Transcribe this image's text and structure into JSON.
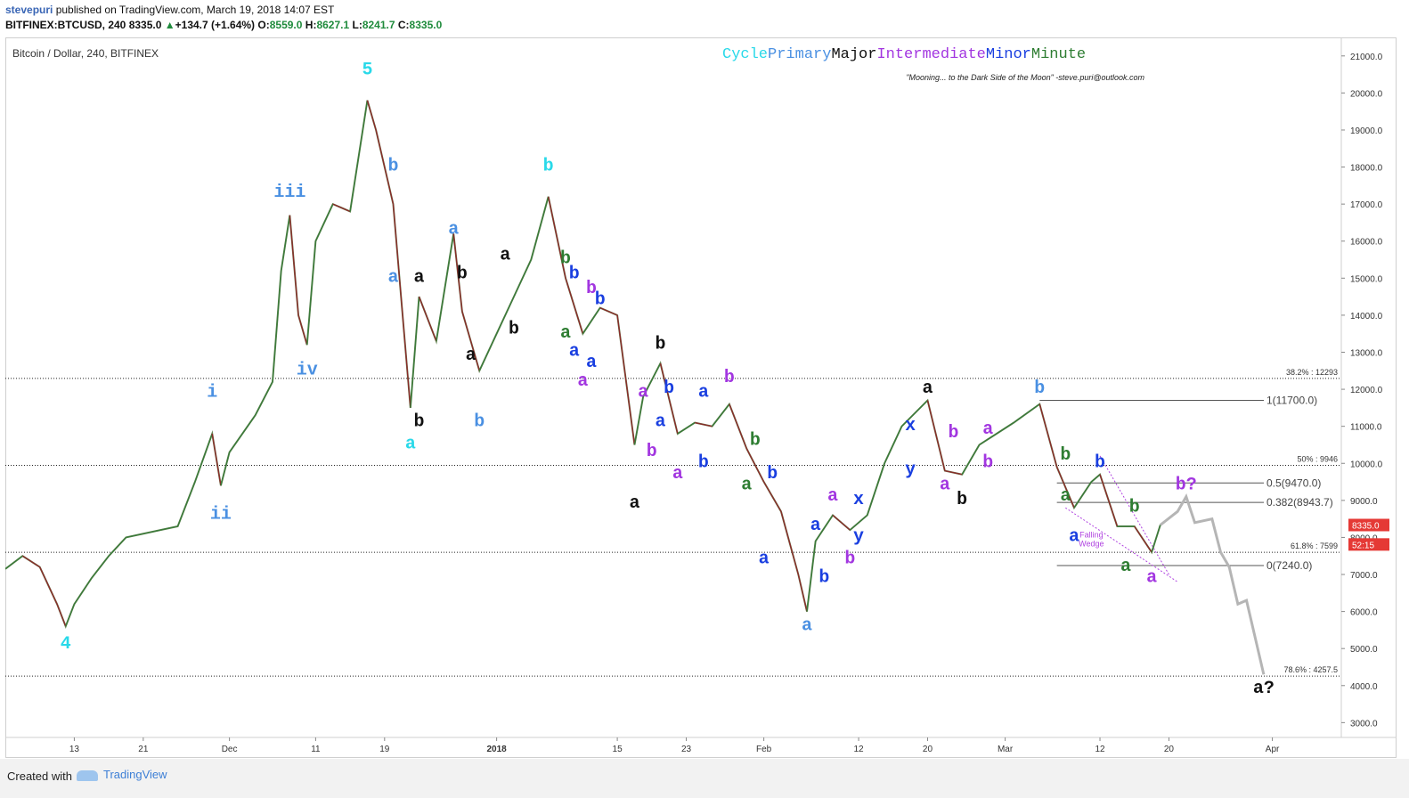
{
  "header": {
    "author": "stevepuri",
    "published_text": "published on TradingView.com, March 19, 2018 14:07 EST",
    "symbol": "BITFINEX:BTCUSD, 240",
    "last": "8335.0",
    "change_arrow": "▲",
    "change": "+134.7 (+1.64%)",
    "open_label": "O:",
    "open": "8559.0",
    "high_label": "H:",
    "high": "8627.1",
    "low_label": "L:",
    "low": "8241.7",
    "close_label": "C:",
    "close": "8335.0"
  },
  "footer": {
    "created_with": "Created with",
    "brand": "TradingView"
  },
  "chart_data": {
    "type": "line",
    "series_kind": "candlestick (4-hour), traced as close path",
    "title": "Bitcoin / Dollar, 240, BITFINEX",
    "legend_words": [
      {
        "text": "Cycle",
        "color": "#29d9e9"
      },
      {
        "text": "Primary",
        "color": "#4a90e2"
      },
      {
        "text": "Major",
        "color": "#111111"
      },
      {
        "text": "Intermediate",
        "color": "#a236e0"
      },
      {
        "text": "Minor",
        "color": "#1a3fe0"
      },
      {
        "text": "Minute",
        "color": "#2e7d32"
      }
    ],
    "subtitle": "\"Mooning... to the Dark Side of the Moon\" -steve.puri@outlook.com",
    "y_axis": {
      "ylim": [
        2600,
        21500
      ],
      "ticks": [
        3000,
        4000,
        5000,
        6000,
        7000,
        8000,
        9000,
        10000,
        11000,
        12000,
        13000,
        14000,
        15000,
        16000,
        17000,
        18000,
        19000,
        20000,
        21000
      ],
      "tick_labels": [
        "3000.0",
        "4000.0",
        "5000.0",
        "6000.0",
        "7000.0",
        "8000.0",
        "9000.0",
        "10000.0",
        "11000.0",
        "12000.0",
        "13000.0",
        "14000.0",
        "15000.0",
        "16000.0",
        "17000.0",
        "18000.0",
        "19000.0",
        "20000.0",
        "21000.0"
      ]
    },
    "x_axis": {
      "xlim": [
        "2017-11-05",
        "2018-04-09"
      ],
      "ticks": [
        {
          "date": "2017-11-13",
          "label": "13"
        },
        {
          "date": "2017-11-21",
          "label": "21"
        },
        {
          "date": "2017-12-01",
          "label": "Dec"
        },
        {
          "date": "2017-12-11",
          "label": "11"
        },
        {
          "date": "2017-12-19",
          "label": "19"
        },
        {
          "date": "2018-01-01",
          "label": "2018"
        },
        {
          "date": "2018-01-15",
          "label": "15"
        },
        {
          "date": "2018-01-23",
          "label": "23"
        },
        {
          "date": "2018-02-01",
          "label": "Feb"
        },
        {
          "date": "2018-02-12",
          "label": "12"
        },
        {
          "date": "2018-02-20",
          "label": "20"
        },
        {
          "date": "2018-03-01",
          "label": "Mar"
        },
        {
          "date": "2018-03-12",
          "label": "12"
        },
        {
          "date": "2018-03-20",
          "label": "20"
        },
        {
          "date": "2018-04-01",
          "label": "Apr"
        }
      ]
    },
    "price_path": [
      [
        "2017-11-05",
        7150
      ],
      [
        "2017-11-07",
        7500
      ],
      [
        "2017-11-09",
        7200
      ],
      [
        "2017-11-11",
        6200
      ],
      [
        "2017-11-12",
        5600
      ],
      [
        "2017-11-13",
        6200
      ],
      [
        "2017-11-15",
        6900
      ],
      [
        "2017-11-17",
        7500
      ],
      [
        "2017-11-19",
        8000
      ],
      [
        "2017-11-21",
        8100
      ],
      [
        "2017-11-23",
        8200
      ],
      [
        "2017-11-25",
        8300
      ],
      [
        "2017-11-27",
        9500
      ],
      [
        "2017-11-29",
        10800
      ],
      [
        "2017-11-30",
        9400
      ],
      [
        "2017-12-01",
        10300
      ],
      [
        "2017-12-04",
        11300
      ],
      [
        "2017-12-06",
        12200
      ],
      [
        "2017-12-07",
        15200
      ],
      [
        "2017-12-08",
        16700
      ],
      [
        "2017-12-09",
        14000
      ],
      [
        "2017-12-10",
        13200
      ],
      [
        "2017-12-11",
        16000
      ],
      [
        "2017-12-13",
        17000
      ],
      [
        "2017-12-15",
        16800
      ],
      [
        "2017-12-17",
        19800
      ],
      [
        "2017-12-18",
        19000
      ],
      [
        "2017-12-20",
        17000
      ],
      [
        "2017-12-22",
        11500
      ],
      [
        "2017-12-23",
        14500
      ],
      [
        "2017-12-25",
        13300
      ],
      [
        "2017-12-27",
        16200
      ],
      [
        "2017-12-28",
        14100
      ],
      [
        "2017-12-30",
        12500
      ],
      [
        "2018-01-01",
        13500
      ],
      [
        "2018-01-03",
        14500
      ],
      [
        "2018-01-05",
        15500
      ],
      [
        "2018-01-07",
        17200
      ],
      [
        "2018-01-09",
        15000
      ],
      [
        "2018-01-11",
        13500
      ],
      [
        "2018-01-13",
        14200
      ],
      [
        "2018-01-15",
        14000
      ],
      [
        "2018-01-17",
        10500
      ],
      [
        "2018-01-18",
        11800
      ],
      [
        "2018-01-20",
        12700
      ],
      [
        "2018-01-22",
        10800
      ],
      [
        "2018-01-24",
        11100
      ],
      [
        "2018-01-26",
        11000
      ],
      [
        "2018-01-28",
        11600
      ],
      [
        "2018-01-30",
        10400
      ],
      [
        "2018-02-01",
        9500
      ],
      [
        "2018-02-03",
        8700
      ],
      [
        "2018-02-05",
        7000
      ],
      [
        "2018-02-06",
        6000
      ],
      [
        "2018-02-07",
        7900
      ],
      [
        "2018-02-09",
        8600
      ],
      [
        "2018-02-11",
        8200
      ],
      [
        "2018-02-13",
        8600
      ],
      [
        "2018-02-15",
        10000
      ],
      [
        "2018-02-17",
        11000
      ],
      [
        "2018-02-20",
        11700
      ],
      [
        "2018-02-22",
        9800
      ],
      [
        "2018-02-24",
        9700
      ],
      [
        "2018-02-26",
        10500
      ],
      [
        "2018-02-28",
        10800
      ],
      [
        "2018-03-02",
        11100
      ],
      [
        "2018-03-05",
        11600
      ],
      [
        "2018-03-07",
        9900
      ],
      [
        "2018-03-09",
        8800
      ],
      [
        "2018-03-11",
        9500
      ],
      [
        "2018-03-12",
        9700
      ],
      [
        "2018-03-14",
        8300
      ],
      [
        "2018-03-16",
        8300
      ],
      [
        "2018-03-18",
        7600
      ],
      [
        "2018-03-19",
        8335
      ]
    ],
    "projection_path": [
      [
        "2018-03-19",
        8335
      ],
      [
        "2018-03-21",
        8700
      ],
      [
        "2018-03-22",
        9100
      ],
      [
        "2018-03-23",
        8400
      ],
      [
        "2018-03-25",
        8500
      ],
      [
        "2018-03-26",
        7600
      ],
      [
        "2018-03-27",
        7200
      ],
      [
        "2018-03-28",
        6200
      ],
      [
        "2018-03-29",
        6300
      ],
      [
        "2018-03-30",
        5300
      ],
      [
        "2018-03-31",
        4300
      ]
    ],
    "fib_levels": [
      {
        "label": "38.2% : 12293",
        "value": 12293
      },
      {
        "label": "50% : 9946",
        "value": 9946
      },
      {
        "label": "61.8% : 7599",
        "value": 7599
      },
      {
        "label": "78.6% : 4257.5",
        "value": 4257.5
      }
    ],
    "fib_short_levels": [
      {
        "label": "1(11700.0)",
        "value": 11700,
        "from": "2018-03-05"
      },
      {
        "label": "0.5(9470.0)",
        "value": 9470,
        "from": "2018-03-07"
      },
      {
        "label": "0.382(8943.7)",
        "value": 8943.7,
        "from": "2018-03-07"
      },
      {
        "label": "0(7240.0)",
        "value": 7240,
        "from": "2018-03-07"
      }
    ],
    "price_tags": [
      {
        "text": "8335.0",
        "value": 8335,
        "color": "#e53935"
      },
      {
        "text": "52:15",
        "value": 7810,
        "color": "#e53935"
      }
    ],
    "wedge": {
      "label_lines": [
        "Falling",
        "Wedge"
      ],
      "upper": [
        [
          "2018-03-12",
          10200
        ],
        [
          "2018-03-20",
          7000
        ]
      ],
      "lower": [
        [
          "2018-03-08",
          8800
        ],
        [
          "2018-03-21",
          6800
        ]
      ]
    },
    "annotations": [
      {
        "t": "4",
        "d": "2017-11-12",
        "v": 5000,
        "c": "#29d9e9"
      },
      {
        "t": "i",
        "d": "2017-11-29",
        "v": 11800,
        "c": "#4a90e2"
      },
      {
        "t": "ii",
        "d": "2017-11-30",
        "v": 8500,
        "c": "#4a90e2"
      },
      {
        "t": "iii",
        "d": "2017-12-08",
        "v": 17200,
        "c": "#4a90e2"
      },
      {
        "t": "iv",
        "d": "2017-12-10",
        "v": 12400,
        "c": "#4a90e2"
      },
      {
        "t": "5",
        "d": "2017-12-17",
        "v": 20500,
        "c": "#29d9e9"
      },
      {
        "t": "b",
        "d": "2017-12-20",
        "v": 17900,
        "c": "#4a90e2"
      },
      {
        "t": "a",
        "d": "2017-12-20",
        "v": 14900,
        "c": "#4a90e2"
      },
      {
        "t": "a",
        "d": "2017-12-22",
        "v": 10400,
        "c": "#29d9e9"
      },
      {
        "t": "a",
        "d": "2017-12-23",
        "v": 14900,
        "c": "#111111"
      },
      {
        "t": "b",
        "d": "2017-12-23",
        "v": 11000,
        "c": "#111111"
      },
      {
        "t": "a",
        "d": "2017-12-27",
        "v": 16200,
        "c": "#4a90e2"
      },
      {
        "t": "b",
        "d": "2017-12-28",
        "v": 15000,
        "c": "#111111"
      },
      {
        "t": "a",
        "d": "2017-12-29",
        "v": 12800,
        "c": "#111111"
      },
      {
        "t": "b",
        "d": "2017-12-30",
        "v": 11000,
        "c": "#4a90e2"
      },
      {
        "t": "a",
        "d": "2018-01-02",
        "v": 15500,
        "c": "#111111"
      },
      {
        "t": "b",
        "d": "2018-01-03",
        "v": 13500,
        "c": "#111111"
      },
      {
        "t": "b",
        "d": "2018-01-07",
        "v": 17900,
        "c": "#29d9e9"
      },
      {
        "t": "b",
        "d": "2018-01-09",
        "v": 15400,
        "c": "#2e7d32"
      },
      {
        "t": "a",
        "d": "2018-01-09",
        "v": 13400,
        "c": "#2e7d32"
      },
      {
        "t": "b",
        "d": "2018-01-10",
        "v": 15000,
        "c": "#1a3fe0"
      },
      {
        "t": "a",
        "d": "2018-01-10",
        "v": 12900,
        "c": "#1a3fe0"
      },
      {
        "t": "a",
        "d": "2018-01-11",
        "v": 12100,
        "c": "#a236e0"
      },
      {
        "t": "b",
        "d": "2018-01-12",
        "v": 14600,
        "c": "#a236e0"
      },
      {
        "t": "b",
        "d": "2018-01-13",
        "v": 14300,
        "c": "#1a3fe0"
      },
      {
        "t": "a",
        "d": "2018-01-12",
        "v": 12600,
        "c": "#1a3fe0"
      },
      {
        "t": "b",
        "d": "2018-01-20",
        "v": 13100,
        "c": "#111111"
      },
      {
        "t": "a",
        "d": "2018-01-18",
        "v": 11800,
        "c": "#a236e0"
      },
      {
        "t": "b",
        "d": "2018-01-19",
        "v": 10200,
        "c": "#a236e0"
      },
      {
        "t": "a",
        "d": "2018-01-17",
        "v": 8800,
        "c": "#111111"
      },
      {
        "t": "b",
        "d": "2018-01-21",
        "v": 11900,
        "c": "#1a3fe0"
      },
      {
        "t": "a",
        "d": "2018-01-20",
        "v": 11000,
        "c": "#1a3fe0"
      },
      {
        "t": "a",
        "d": "2018-01-22",
        "v": 9600,
        "c": "#a236e0"
      },
      {
        "t": "a",
        "d": "2018-01-25",
        "v": 11800,
        "c": "#1a3fe0"
      },
      {
        "t": "b",
        "d": "2018-01-25",
        "v": 9900,
        "c": "#1a3fe0"
      },
      {
        "t": "b",
        "d": "2018-01-28",
        "v": 12200,
        "c": "#a236e0"
      },
      {
        "t": "b",
        "d": "2018-01-31",
        "v": 10500,
        "c": "#2e7d32"
      },
      {
        "t": "a",
        "d": "2018-01-30",
        "v": 9300,
        "c": "#2e7d32"
      },
      {
        "t": "b",
        "d": "2018-02-02",
        "v": 9600,
        "c": "#1a3fe0"
      },
      {
        "t": "a",
        "d": "2018-02-01",
        "v": 7300,
        "c": "#1a3fe0"
      },
      {
        "t": "a",
        "d": "2018-02-06",
        "v": 5500,
        "c": "#4a90e2"
      },
      {
        "t": "a",
        "d": "2018-02-07",
        "v": 8200,
        "c": "#1a3fe0"
      },
      {
        "t": "b",
        "d": "2018-02-08",
        "v": 6800,
        "c": "#1a3fe0"
      },
      {
        "t": "a",
        "d": "2018-02-09",
        "v": 9000,
        "c": "#a236e0"
      },
      {
        "t": "b",
        "d": "2018-02-11",
        "v": 7300,
        "c": "#a236e0"
      },
      {
        "t": "x",
        "d": "2018-02-12",
        "v": 8900,
        "c": "#1a3fe0"
      },
      {
        "t": "y",
        "d": "2018-02-12",
        "v": 7900,
        "c": "#1a3fe0"
      },
      {
        "t": "x",
        "d": "2018-02-18",
        "v": 10900,
        "c": "#1a3fe0"
      },
      {
        "t": "y",
        "d": "2018-02-18",
        "v": 9700,
        "c": "#1a3fe0"
      },
      {
        "t": "a",
        "d": "2018-02-20",
        "v": 11900,
        "c": "#111111"
      },
      {
        "t": "b",
        "d": "2018-02-23",
        "v": 10700,
        "c": "#a236e0"
      },
      {
        "t": "a",
        "d": "2018-02-22",
        "v": 9300,
        "c": "#a236e0"
      },
      {
        "t": "b",
        "d": "2018-02-24",
        "v": 8900,
        "c": "#111111"
      },
      {
        "t": "a",
        "d": "2018-02-27",
        "v": 10800,
        "c": "#a236e0"
      },
      {
        "t": "b",
        "d": "2018-02-27",
        "v": 9900,
        "c": "#a236e0"
      },
      {
        "t": "b",
        "d": "2018-03-05",
        "v": 11900,
        "c": "#4a90e2"
      },
      {
        "t": "b",
        "d": "2018-03-08",
        "v": 10100,
        "c": "#2e7d32"
      },
      {
        "t": "a",
        "d": "2018-03-08",
        "v": 9000,
        "c": "#2e7d32"
      },
      {
        "t": "a",
        "d": "2018-03-09",
        "v": 7900,
        "c": "#1a3fe0"
      },
      {
        "t": "b",
        "d": "2018-03-12",
        "v": 9900,
        "c": "#1a3fe0"
      },
      {
        "t": "b",
        "d": "2018-03-16",
        "v": 8700,
        "c": "#2e7d32"
      },
      {
        "t": "a",
        "d": "2018-03-15",
        "v": 7100,
        "c": "#2e7d32"
      },
      {
        "t": "a",
        "d": "2018-03-18",
        "v": 6800,
        "c": "#a236e0"
      },
      {
        "t": "b?",
        "d": "2018-03-22",
        "v": 9300,
        "c": "#a236e0"
      },
      {
        "t": "a?",
        "d": "2018-03-31",
        "v": 3800,
        "c": "#111111"
      }
    ]
  }
}
